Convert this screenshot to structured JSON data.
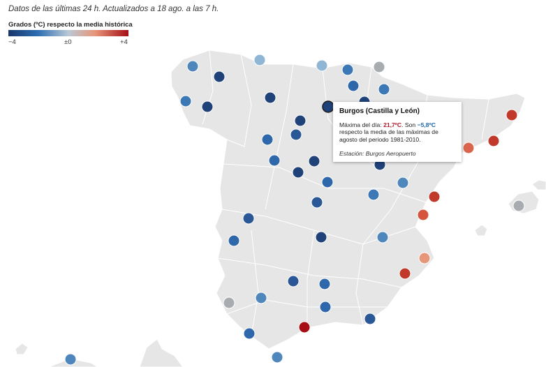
{
  "subtitle": "Datos de las últimas 24 h. Actualizados a 18 ago. a las 7 h.",
  "legend": {
    "title": "Grados (ºC) respecto la media histórica",
    "min_label": "−4",
    "mid_label": "±0",
    "max_label": "+4",
    "colors": [
      "#17376b",
      "#2f6fb3",
      "#b9c9d6",
      "#e8967a",
      "#a50f15"
    ]
  },
  "tooltip": {
    "title": "Burgos (Castilla y León)",
    "line1_prefix": "Máxima del día: ",
    "max_temp": "21,7ºC",
    "line1_mid": ". Son ",
    "anomaly": "−5,8ºC",
    "line1_suffix": " respecto la media de las máximas de agosto del periodo 1981-2010.",
    "station": "Estación: Burgos Aeropuerto"
  }
}
